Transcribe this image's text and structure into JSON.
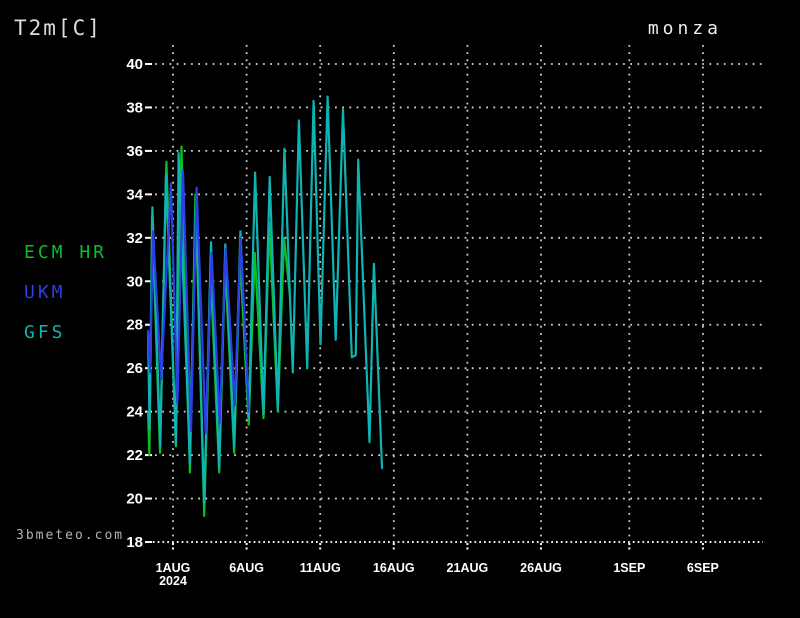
{
  "header": {
    "title": "T2m[C]",
    "station": "monza"
  },
  "watermark": "3bmeteo.com",
  "colors": {
    "background": "#000000",
    "grid": "#d0d0d0",
    "axis_text": "#ffffff",
    "ecm": "#0abf25",
    "ukm": "#2c3fe3",
    "gfs": "#10b2b2"
  },
  "chart_data": {
    "type": "line",
    "title": "T2m[C]",
    "station": "monza",
    "x_unit": "days since 2024-08-01 00:00",
    "y_unit": "degrees C",
    "ylim": [
      18,
      40
    ],
    "ytick_step": 2,
    "yticks": [
      18,
      20,
      22,
      24,
      26,
      28,
      30,
      32,
      34,
      36,
      38,
      40
    ],
    "xticks": [
      {
        "t": 0,
        "label": "1AUG",
        "sublabel": "2024"
      },
      {
        "t": 5,
        "label": "6AUG"
      },
      {
        "t": 10,
        "label": "11AUG"
      },
      {
        "t": 15,
        "label": "16AUG"
      },
      {
        "t": 20,
        "label": "21AUG"
      },
      {
        "t": 25,
        "label": "26AUG"
      },
      {
        "t": 31,
        "label": "1SEP"
      },
      {
        "t": 36,
        "label": "6SEP"
      }
    ],
    "grid": true,
    "legend_position": "left",
    "series": [
      {
        "name": "ECM HR",
        "color_key": "ecm",
        "points": [
          [
            -1.7,
            24.0
          ],
          [
            -1.6,
            22.0
          ],
          [
            -1.42,
            33.0
          ],
          [
            -0.88,
            22.1
          ],
          [
            -0.45,
            35.5
          ],
          [
            0.2,
            22.4
          ],
          [
            0.58,
            36.2
          ],
          [
            1.15,
            21.2
          ],
          [
            1.52,
            34.0
          ],
          [
            2.12,
            19.2
          ],
          [
            2.56,
            30.3
          ],
          [
            3.14,
            21.2
          ],
          [
            3.54,
            30.8
          ],
          [
            4.16,
            22.1
          ],
          [
            4.56,
            31.1
          ],
          [
            5.14,
            23.4
          ],
          [
            5.56,
            31.3
          ],
          [
            6.15,
            23.7
          ],
          [
            6.55,
            32.7
          ],
          [
            7.12,
            24.0
          ],
          [
            7.55,
            32.0
          ],
          [
            7.95,
            29.3
          ]
        ]
      },
      {
        "name": "GFS",
        "color_key": "gfs",
        "points": [
          [
            -1.7,
            27.6
          ],
          [
            -1.58,
            23.2
          ],
          [
            -1.4,
            33.4
          ],
          [
            -0.86,
            22.4
          ],
          [
            -0.48,
            34.9
          ],
          [
            0.2,
            22.5
          ],
          [
            0.38,
            35.9
          ],
          [
            1.15,
            21.6
          ],
          [
            1.55,
            33.5
          ],
          [
            2.12,
            19.8
          ],
          [
            2.58,
            31.8
          ],
          [
            3.14,
            21.4
          ],
          [
            3.55,
            31.7
          ],
          [
            4.16,
            22.4
          ],
          [
            4.58,
            32.3
          ],
          [
            5.14,
            23.7
          ],
          [
            5.58,
            35.0
          ],
          [
            6.15,
            23.9
          ],
          [
            6.57,
            34.8
          ],
          [
            7.12,
            24.1
          ],
          [
            7.57,
            36.1
          ],
          [
            8.14,
            25.8
          ],
          [
            8.55,
            37.4
          ],
          [
            9.12,
            26.0
          ],
          [
            9.55,
            38.3
          ],
          [
            10.02,
            27.1
          ],
          [
            10.5,
            38.5
          ],
          [
            11.05,
            27.3
          ],
          [
            11.55,
            37.9
          ],
          [
            12.15,
            26.5
          ],
          [
            12.42,
            26.6
          ],
          [
            12.58,
            35.6
          ],
          [
            13.35,
            22.6
          ],
          [
            13.65,
            30.8
          ],
          [
            14.2,
            21.4
          ]
        ]
      },
      {
        "name": "UKM",
        "color_key": "ukm",
        "points": [
          [
            -1.7,
            27.7
          ],
          [
            -1.55,
            25.8
          ],
          [
            -1.36,
            32.3
          ],
          [
            -0.8,
            25.5
          ],
          [
            -0.14,
            34.5
          ],
          [
            0.3,
            24.4
          ],
          [
            0.68,
            35.1
          ],
          [
            1.22,
            23.1
          ],
          [
            1.6,
            34.3
          ],
          [
            2.22,
            23.0
          ],
          [
            2.62,
            31.3
          ],
          [
            3.18,
            23.5
          ],
          [
            3.58,
            31.5
          ],
          [
            4.2,
            24.3
          ],
          [
            4.6,
            32.0
          ],
          [
            5.15,
            24.0
          ]
        ]
      }
    ]
  }
}
